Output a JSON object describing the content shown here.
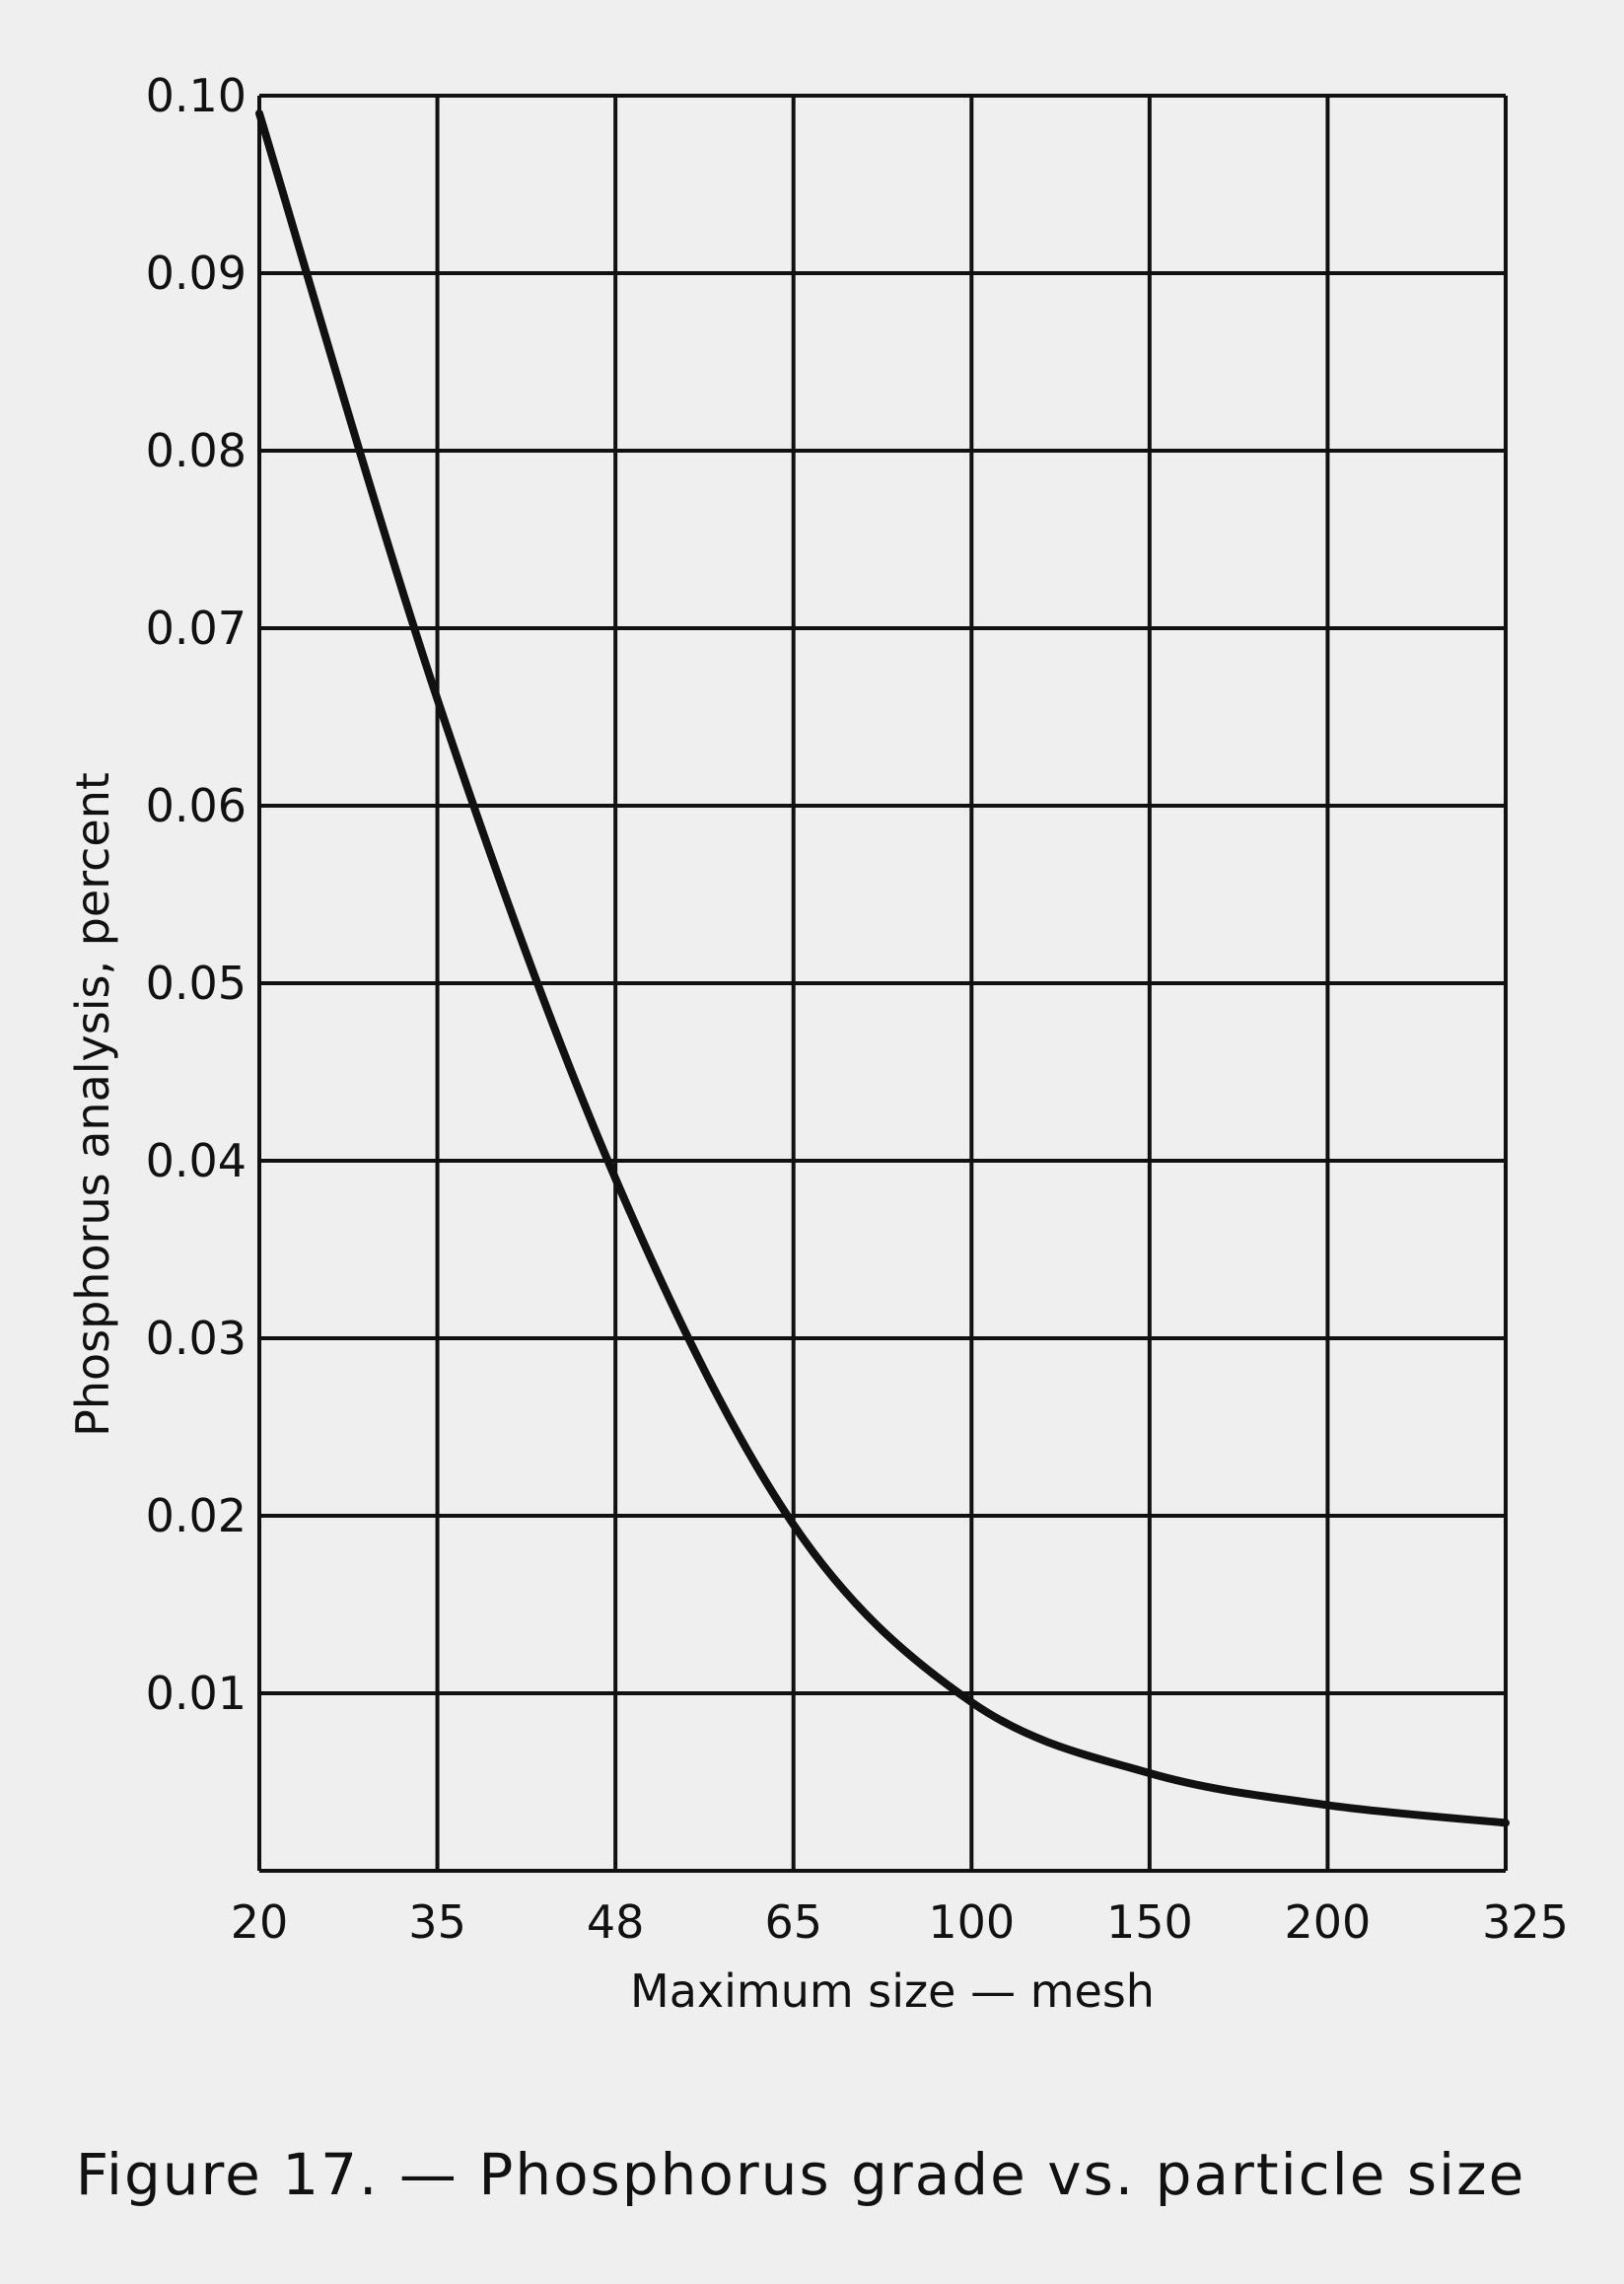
{
  "chart_data": {
    "type": "line",
    "caption": "Figure 17. — Phosphorus grade vs. particle size",
    "xlabel": "Maximum size — mesh",
    "ylabel": "Phosphorus analysis, percent",
    "categories": [
      "20",
      "35",
      "48",
      "65",
      "100",
      "150",
      "200",
      "325"
    ],
    "yticks": [
      "0.01",
      "0.02",
      "0.03",
      "0.04",
      "0.05",
      "0.06",
      "0.07",
      "0.08",
      "0.09",
      "0.10"
    ],
    "ylim": [
      0,
      0.1
    ],
    "grid": true,
    "series": [
      {
        "values": [
          0.099,
          0.066,
          0.039,
          0.0195,
          0.0095,
          0.0055,
          0.0037,
          0.0027
        ]
      }
    ],
    "colors": {
      "background": "#efefef",
      "ink": "#111111"
    }
  }
}
